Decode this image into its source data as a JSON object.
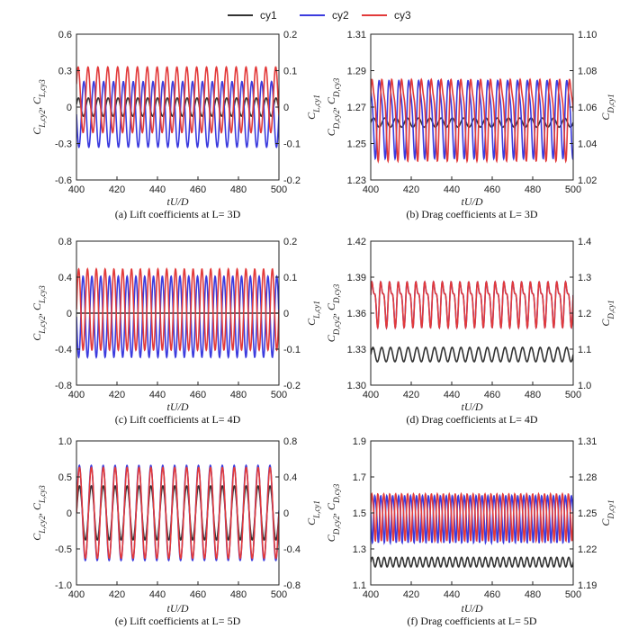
{
  "legend": [
    {
      "name": "cy1",
      "color": "#333333"
    },
    {
      "name": "cy2",
      "color": "#3b3bde"
    },
    {
      "name": "cy3",
      "color": "#e23a3a"
    }
  ],
  "chart_data": [
    {
      "id": "a",
      "type": "line",
      "caption": "(a) Lift coefficients at L= 3D",
      "xlabel": "tU/D",
      "xlim": [
        400,
        500
      ],
      "xticks": [
        "400",
        "420",
        "440",
        "460",
        "480",
        "500"
      ],
      "ylabel_left": "C_L_cy2, C_L_cy3",
      "ylabel_right": "C_L_cy1",
      "ylim_left": [
        -0.6,
        0.6
      ],
      "yticks_left": [
        "-0.6",
        "-0.3",
        "0",
        "0.3",
        "0.6"
      ],
      "ylim_right": [
        -0.2,
        0.2
      ],
      "yticks_right": [
        "-0.2",
        "-0.1",
        "0",
        "0.1",
        "0.2"
      ],
      "series": [
        {
          "name": "cy1",
          "axis": "right",
          "mean": 0.0,
          "amp": 0.025,
          "cycles": 20.5,
          "phase": 0.3,
          "harm": 0
        },
        {
          "name": "cy2",
          "axis": "left",
          "mean": -0.06,
          "amp": 0.27,
          "cycles": 20.5,
          "phase": 3.14,
          "harm": 0
        },
        {
          "name": "cy3",
          "axis": "left",
          "mean": 0.06,
          "amp": 0.27,
          "cycles": 20.5,
          "phase": 0.5,
          "harm": 0
        }
      ]
    },
    {
      "id": "b",
      "type": "line",
      "caption": "(b) Drag coefficients at L= 3D",
      "xlabel": "tU/D",
      "xlim": [
        400,
        500
      ],
      "xticks": [
        "400",
        "420",
        "440",
        "460",
        "480",
        "500"
      ],
      "ylabel_left": "C_D_cy2, C_D_cy3",
      "ylabel_right": "C_D_cy1",
      "ylim_left": [
        1.23,
        1.31
      ],
      "yticks_left": [
        "1.23",
        "1.25",
        "1.27",
        "1.29",
        "1.31"
      ],
      "ylim_right": [
        1.02,
        1.1
      ],
      "yticks_right": [
        "1.02",
        "1.04",
        "1.06",
        "1.08",
        "1.10"
      ],
      "series": [
        {
          "name": "cy1",
          "axis": "right",
          "mean": 1.0515,
          "amp": 0.0025,
          "cycles": 18,
          "phase": 0.0,
          "harm": 0
        },
        {
          "name": "cy2",
          "axis": "left",
          "mean": 1.266,
          "amp": 0.023,
          "cycles": 20.5,
          "phase": 2.0,
          "harm": 0.25
        },
        {
          "name": "cy3",
          "axis": "left",
          "mean": 1.266,
          "amp": 0.024,
          "cycles": 20.5,
          "phase": 0.2,
          "harm": 0.3
        }
      ]
    },
    {
      "id": "c",
      "type": "line",
      "caption": "(c) Lift coefficients at L= 4D",
      "xlabel": "tU/D",
      "xlim": [
        400,
        500
      ],
      "xticks": [
        "400",
        "420",
        "440",
        "460",
        "480",
        "500"
      ],
      "ylabel_left": "C_L_cy2, C_L_cy3",
      "ylabel_right": "C_L_cy1",
      "ylim_left": [
        -0.8,
        0.8
      ],
      "yticks_left": [
        "-0.8",
        "-0.4",
        "0",
        "0.4",
        "0.8"
      ],
      "ylim_right": [
        -0.2,
        0.2
      ],
      "yticks_right": [
        "-0.2",
        "-0.1",
        "0",
        "0.1",
        "0.2"
      ],
      "series": [
        {
          "name": "cy1",
          "axis": "right",
          "mean": 0.0,
          "amp": 0.0,
          "cycles": 23,
          "phase": 0.0,
          "harm": 0
        },
        {
          "name": "cy2",
          "axis": "left",
          "mean": -0.04,
          "amp": 0.45,
          "cycles": 23,
          "phase": 3.14,
          "harm": 0
        },
        {
          "name": "cy3",
          "axis": "left",
          "mean": 0.04,
          "amp": 0.45,
          "cycles": 23,
          "phase": 0.0,
          "harm": 0
        }
      ]
    },
    {
      "id": "d",
      "type": "line",
      "caption": "(d) Drag coefficients at L= 4D",
      "xlabel": "tU/D",
      "xlim": [
        400,
        500
      ],
      "xticks": [
        "400",
        "420",
        "440",
        "460",
        "480",
        "500"
      ],
      "ylabel_left": "C_D_cy2, C_D_cy3",
      "ylabel_right": "C_D_cy1",
      "ylim_left": [
        1.3,
        1.42
      ],
      "yticks_left": [
        "1.30",
        "1.33",
        "1.36",
        "1.39",
        "1.42"
      ],
      "ylim_right": [
        1.0,
        1.4
      ],
      "yticks_right": [
        "1.0",
        "1.1",
        "1.2",
        "1.3",
        "1.4"
      ],
      "series": [
        {
          "name": "cy1",
          "axis": "right",
          "mean": 1.085,
          "amp": 0.02,
          "cycles": 23,
          "phase": 0.0,
          "harm": 0
        },
        {
          "name": "cy2",
          "axis": "left",
          "mean": 1.37,
          "amp": 0.02,
          "cycles": 23,
          "phase": 0.0,
          "harm": 0.45
        },
        {
          "name": "cy3",
          "axis": "left",
          "mean": 1.37,
          "amp": 0.02,
          "cycles": 23,
          "phase": 0.0,
          "harm": 0.45
        }
      ]
    },
    {
      "id": "e",
      "type": "line",
      "caption": "(e) Lift coefficients at L= 5D",
      "xlabel": "tU/D",
      "xlim": [
        400,
        500
      ],
      "xticks": [
        "400",
        "420",
        "440",
        "460",
        "480",
        "500"
      ],
      "ylabel_left": "C_L_cy2, C_L_cy3",
      "ylabel_right": "C_L_cy1",
      "ylim_left": [
        -1.0,
        1.0
      ],
      "yticks_left": [
        "-1.0",
        "-0.5",
        "0",
        "0.5",
        "1.0"
      ],
      "ylim_right": [
        -0.8,
        0.8
      ],
      "yticks_right": [
        "-0.8",
        "-0.4",
        "0",
        "0.4",
        "0.8"
      ],
      "series": [
        {
          "name": "cy1",
          "axis": "right",
          "mean": 0.0,
          "amp": 0.3,
          "cycles": 17,
          "phase": 0.0,
          "harm": 0
        },
        {
          "name": "cy2",
          "axis": "left",
          "mean": 0.0,
          "amp": 0.66,
          "cycles": 17,
          "phase": 0.05,
          "harm": 0
        },
        {
          "name": "cy3",
          "axis": "left",
          "mean": 0.0,
          "amp": 0.63,
          "cycles": 17,
          "phase": 0.0,
          "harm": 0
        }
      ]
    },
    {
      "id": "f",
      "type": "line",
      "caption": "(f) Drag coefficients at L= 5D",
      "xlabel": "tU/D",
      "xlim": [
        400,
        500
      ],
      "xticks": [
        "400",
        "420",
        "440",
        "460",
        "480",
        "500"
      ],
      "ylabel_left": "C_D_cy2, C_D_cy3",
      "ylabel_right": "C_D_cy1",
      "ylim_left": [
        1.1,
        1.9
      ],
      "yticks_left": [
        "1.1",
        "1.3",
        "1.5",
        "1.7",
        "1.9"
      ],
      "ylim_right": [
        1.19,
        1.31
      ],
      "yticks_right": [
        "1.19",
        "1.22",
        "1.25",
        "1.28",
        "1.31"
      ],
      "series": [
        {
          "name": "cy1",
          "axis": "right",
          "mean": 1.209,
          "amp": 0.004,
          "cycles": 34,
          "phase": 0.0,
          "harm": 0
        },
        {
          "name": "cy2",
          "axis": "left",
          "mean": 1.48,
          "amp": 0.14,
          "cycles": 34,
          "phase": 3.14,
          "harm": 0.2
        },
        {
          "name": "cy3",
          "axis": "left",
          "mean": 1.49,
          "amp": 0.14,
          "cycles": 34,
          "phase": 0.0,
          "harm": 0.2
        }
      ]
    }
  ]
}
